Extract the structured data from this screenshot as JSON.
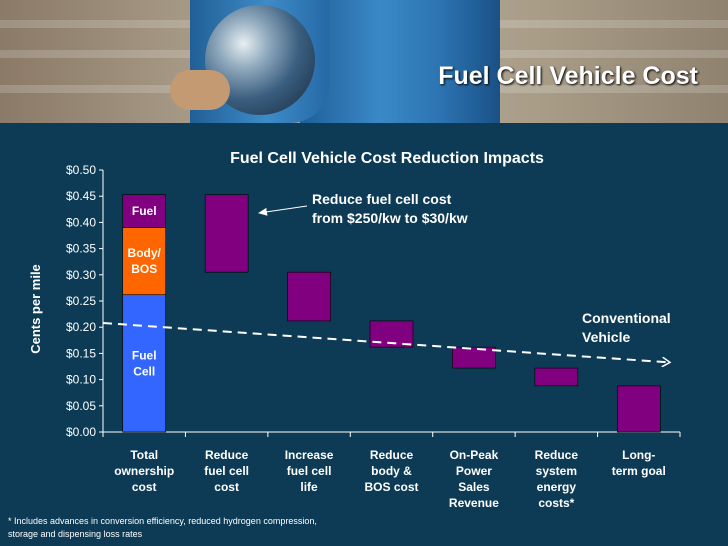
{
  "slide": {
    "title": "Fuel Cell Vehicle Cost",
    "footnote": "* Includes advances in conversion efficiency, reduced hydrogen compression, storage and dispensing  loss rates"
  },
  "chart_data": {
    "type": "bar",
    "title": "Fuel Cell Vehicle Cost Reduction Impacts",
    "ylabel": "Cents per mile",
    "xlabel": "",
    "ylim": [
      0,
      0.5
    ],
    "yticks": [
      "$0.00",
      "$0.05",
      "$0.10",
      "$0.15",
      "$0.20",
      "$0.25",
      "$0.30",
      "$0.35",
      "$0.40",
      "$0.45",
      "$0.50"
    ],
    "categories": [
      [
        "Total",
        "ownership",
        "cost"
      ],
      [
        "Reduce",
        "fuel cell",
        "cost"
      ],
      [
        "Increase",
        "fuel cell",
        "life"
      ],
      [
        "Reduce",
        "body &",
        "BOS cost"
      ],
      [
        "On-Peak",
        "Power",
        "Sales",
        "Revenue"
      ],
      [
        "Reduce",
        "system",
        "energy",
        "costs*"
      ],
      [
        "Long-",
        "term goal"
      ]
    ],
    "stacked_total": {
      "segments": [
        {
          "name": "Fuel Cell",
          "lines": [
            "Fuel",
            "Cell"
          ],
          "value": 0.262,
          "color": "#3366ff"
        },
        {
          "name": "Body/BOS",
          "lines": [
            "Body/",
            "BOS"
          ],
          "value": 0.128,
          "color": "#ff6600"
        },
        {
          "name": "Fuel",
          "lines": [
            "Fuel"
          ],
          "value": 0.063,
          "color": "#800080"
        }
      ]
    },
    "floating_bars": [
      {
        "low": 0.305,
        "high": 0.453
      },
      {
        "low": 0.212,
        "high": 0.305
      },
      {
        "low": 0.162,
        "high": 0.212
      },
      {
        "low": 0.122,
        "high": 0.162
      },
      {
        "low": 0.088,
        "high": 0.122
      },
      {
        "low": 0.0,
        "high": 0.088
      }
    ],
    "bar_color": "#800080",
    "conventional_vehicle": {
      "label": [
        "Conventional",
        "Vehicle"
      ],
      "start": 0.208,
      "end": 0.133
    },
    "annotation": [
      "Reduce fuel cell cost",
      "from $250/kw to $30/kw"
    ]
  }
}
